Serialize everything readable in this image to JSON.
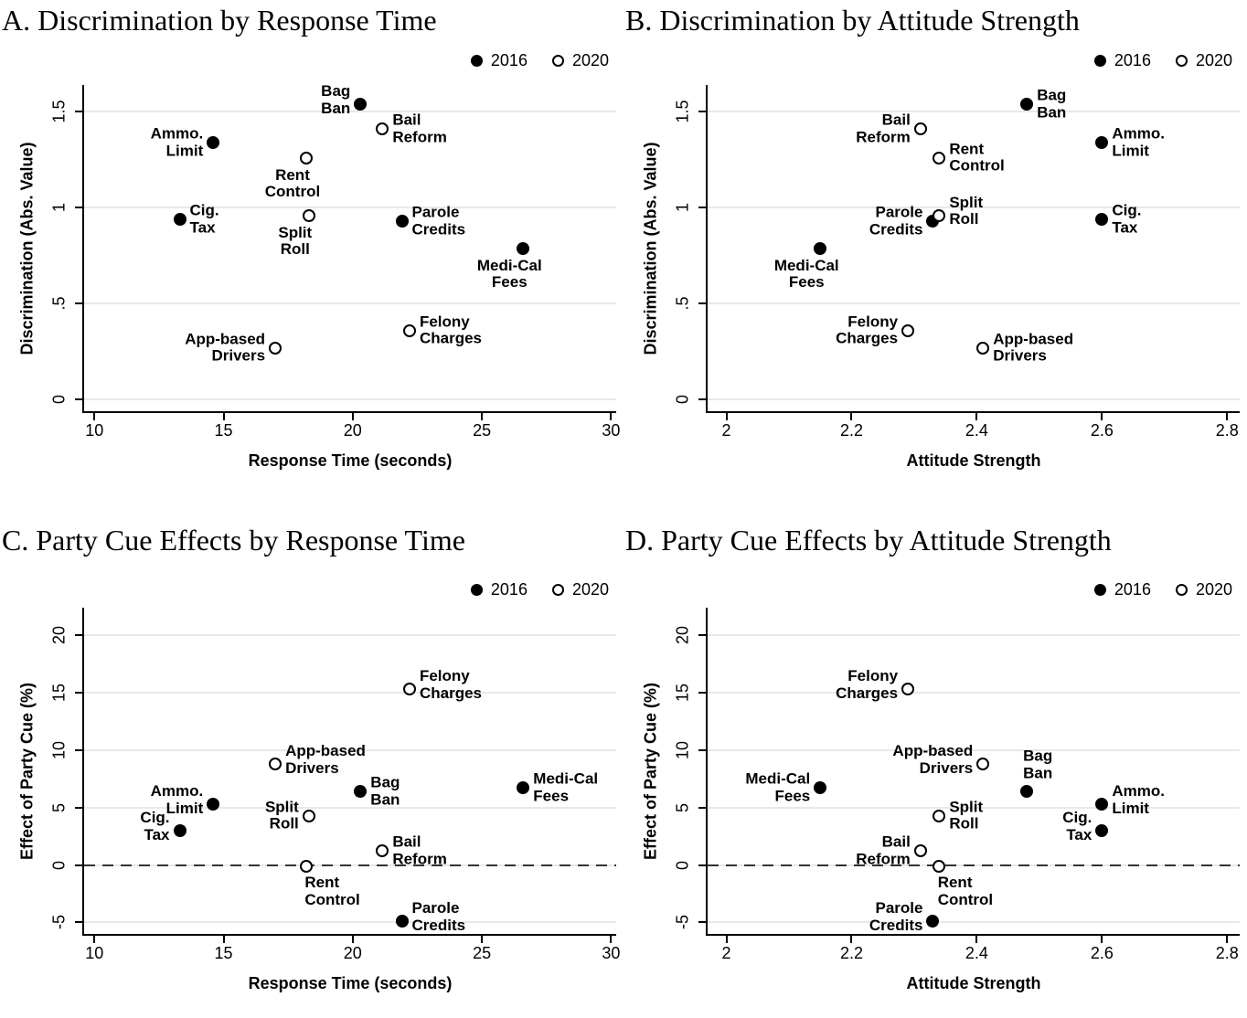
{
  "legend": {
    "series": [
      {
        "label": "2016",
        "marker": "filled"
      },
      {
        "label": "2020",
        "marker": "open"
      }
    ]
  },
  "colors": {
    "point": "#000000",
    "grid": "#e8e8e8",
    "axis": "#000000",
    "dashed_zero_line": "#333333",
    "background": "#ffffff",
    "text": "#000000"
  },
  "chart_data": [
    {
      "id": "A",
      "type": "scatter",
      "title": "A. Discrimination by Response Time",
      "xlabel": "Response Time (seconds)",
      "ylabel": "Discrimination (Abs. Value)",
      "xlim": [
        9.6,
        30.2
      ],
      "ylim": [
        -0.06,
        1.64
      ],
      "xticks": [
        10,
        15,
        20,
        25,
        30
      ],
      "xtick_labels": [
        "10",
        "15",
        "20",
        "25",
        "30"
      ],
      "yticks": [
        0,
        0.5,
        1,
        1.5
      ],
      "ytick_labels": [
        "0",
        ".5",
        "1",
        "1.5"
      ],
      "grid": true,
      "zero_line": false,
      "legend_position": "top-right",
      "series": [
        {
          "name": "2016",
          "marker": "filled",
          "points": [
            {
              "label": "Ammo. Limit",
              "label_lines": [
                "Ammo.",
                "Limit"
              ],
              "x": 14.6,
              "y": 1.34,
              "label_pos": "left"
            },
            {
              "label": "Cig. Tax",
              "label_lines": [
                "Cig.",
                "Tax"
              ],
              "x": 13.3,
              "y": 0.94,
              "label_pos": "right"
            },
            {
              "label": "Bag Ban",
              "label_lines": [
                "Bag",
                "Ban"
              ],
              "x": 20.3,
              "y": 1.54,
              "label_pos": "left-up"
            },
            {
              "label": "Parole Credits",
              "label_lines": [
                "Parole",
                "Credits"
              ],
              "x": 21.9,
              "y": 0.93,
              "label_pos": "right"
            },
            {
              "label": "Medi-Cal Fees",
              "label_lines": [
                "Medi-Cal",
                "Fees"
              ],
              "x": 26.6,
              "y": 0.79,
              "label_pos": "below-left"
            }
          ]
        },
        {
          "name": "2020",
          "marker": "open",
          "points": [
            {
              "label": "Rent Control",
              "label_lines": [
                "Rent",
                "Control"
              ],
              "x": 18.2,
              "y": 1.26,
              "label_pos": "below-left"
            },
            {
              "label": "Split Roll",
              "label_lines": [
                "Split",
                "Roll"
              ],
              "x": 18.3,
              "y": 0.96,
              "label_pos": "below-left"
            },
            {
              "label": "Bail Reform",
              "label_lines": [
                "Bail",
                "Reform"
              ],
              "x": 21.15,
              "y": 1.41,
              "label_pos": "right"
            },
            {
              "label": "App-based Drivers",
              "label_lines": [
                "App-based",
                "Drivers"
              ],
              "x": 17.0,
              "y": 0.27,
              "label_pos": "left"
            },
            {
              "label": "Felony Charges",
              "label_lines": [
                "Felony",
                "Charges"
              ],
              "x": 22.2,
              "y": 0.36,
              "label_pos": "right"
            }
          ]
        }
      ]
    },
    {
      "id": "B",
      "type": "scatter",
      "title": "B. Discrimination by Attitude Strength",
      "xlabel": "Attitude Strength",
      "ylabel": "Discrimination (Abs. Value)",
      "xlim": [
        1.97,
        2.82
      ],
      "ylim": [
        -0.06,
        1.64
      ],
      "xticks": [
        2,
        2.2,
        2.4,
        2.6,
        2.8
      ],
      "xtick_labels": [
        "2",
        "2.2",
        "2.4",
        "2.6",
        "2.8"
      ],
      "yticks": [
        0,
        0.5,
        1,
        1.5
      ],
      "ytick_labels": [
        "0",
        ".5",
        "1",
        "1.5"
      ],
      "grid": true,
      "zero_line": false,
      "legend_position": "top-right",
      "series": [
        {
          "name": "2016",
          "marker": "filled",
          "points": [
            {
              "label": "Bag Ban",
              "label_lines": [
                "Bag",
                "Ban"
              ],
              "x": 2.48,
              "y": 1.54,
              "label_pos": "right"
            },
            {
              "label": "Ammo. Limit",
              "label_lines": [
                "Ammo.",
                "Limit"
              ],
              "x": 2.6,
              "y": 1.34,
              "label_pos": "right"
            },
            {
              "label": "Cig. Tax",
              "label_lines": [
                "Cig.",
                "Tax"
              ],
              "x": 2.6,
              "y": 0.94,
              "label_pos": "right"
            },
            {
              "label": "Parole Credits",
              "label_lines": [
                "Parole",
                "Credits"
              ],
              "x": 2.33,
              "y": 0.93,
              "label_pos": "left"
            },
            {
              "label": "Medi-Cal Fees",
              "label_lines": [
                "Medi-Cal",
                "Fees"
              ],
              "x": 2.15,
              "y": 0.79,
              "label_pos": "below-left"
            }
          ]
        },
        {
          "name": "2020",
          "marker": "open",
          "points": [
            {
              "label": "Bail Reform",
              "label_lines": [
                "Bail",
                "Reform"
              ],
              "x": 2.31,
              "y": 1.41,
              "label_pos": "left"
            },
            {
              "label": "Rent Control",
              "label_lines": [
                "Rent",
                "Control"
              ],
              "x": 2.34,
              "y": 1.26,
              "label_pos": "right"
            },
            {
              "label": "Split Roll",
              "label_lines": [
                "Split",
                "Roll"
              ],
              "x": 2.34,
              "y": 0.96,
              "label_pos": "right-up"
            },
            {
              "label": "Felony Charges",
              "label_lines": [
                "Felony",
                "Charges"
              ],
              "x": 2.29,
              "y": 0.36,
              "label_pos": "left"
            },
            {
              "label": "App-based Drivers",
              "label_lines": [
                "App-based",
                "Drivers"
              ],
              "x": 2.41,
              "y": 0.27,
              "label_pos": "right"
            }
          ]
        }
      ]
    },
    {
      "id": "C",
      "type": "scatter",
      "title": "C. Party Cue Effects by Response Time",
      "xlabel": "Response Time (seconds)",
      "ylabel": "Effect of Party Cue (%)",
      "xlim": [
        9.6,
        30.2
      ],
      "ylim": [
        -6.0,
        22.4
      ],
      "xticks": [
        10,
        15,
        20,
        25,
        30
      ],
      "xtick_labels": [
        "10",
        "15",
        "20",
        "25",
        "30"
      ],
      "yticks": [
        -5,
        0,
        5,
        10,
        15,
        20
      ],
      "ytick_labels": [
        "-5",
        "0",
        "5",
        "10",
        "15",
        "20"
      ],
      "grid": true,
      "zero_line": true,
      "legend_position": "top-right",
      "series": [
        {
          "name": "2016",
          "marker": "filled",
          "points": [
            {
              "label": "Ammo. Limit",
              "label_lines": [
                "Ammo.",
                "Limit"
              ],
              "x": 14.6,
              "y": 5.3,
              "label_pos": "left-up"
            },
            {
              "label": "Cig. Tax",
              "label_lines": [
                "Cig.",
                "Tax"
              ],
              "x": 13.3,
              "y": 3.0,
              "label_pos": "left-up"
            },
            {
              "label": "Bag Ban",
              "label_lines": [
                "Bag",
                "Ban"
              ],
              "x": 20.3,
              "y": 6.4,
              "label_pos": "right"
            },
            {
              "label": "Medi-Cal Fees",
              "label_lines": [
                "Medi-Cal",
                "Fees"
              ],
              "x": 26.6,
              "y": 6.7,
              "label_pos": "right"
            },
            {
              "label": "Parole Credits",
              "label_lines": [
                "Parole",
                "Credits"
              ],
              "x": 21.9,
              "y": -4.9,
              "label_pos": "right-up"
            }
          ]
        },
        {
          "name": "2020",
          "marker": "open",
          "points": [
            {
              "label": "Felony Charges",
              "label_lines": [
                "Felony",
                "Charges"
              ],
              "x": 22.2,
              "y": 15.3,
              "label_pos": "right-up"
            },
            {
              "label": "App-based Drivers",
              "label_lines": [
                "App-based",
                "Drivers"
              ],
              "x": 17.0,
              "y": 8.8,
              "label_pos": "right-up"
            },
            {
              "label": "Split Roll",
              "label_lines": [
                "Split",
                "Roll"
              ],
              "x": 18.3,
              "y": 4.3,
              "label_pos": "left"
            },
            {
              "label": "Bail Reform",
              "label_lines": [
                "Bail",
                "Reform"
              ],
              "x": 21.15,
              "y": 1.2,
              "label_pos": "right"
            },
            {
              "label": "Rent Control",
              "label_lines": [
                "Rent",
                "Control"
              ],
              "x": 18.2,
              "y": -0.1,
              "label_pos": "below-right"
            }
          ]
        }
      ]
    },
    {
      "id": "D",
      "type": "scatter",
      "title": "D. Party Cue Effects by Attitude Strength",
      "xlabel": "Attitude Strength",
      "ylabel": "Effect of Party Cue (%)",
      "xlim": [
        1.97,
        2.82
      ],
      "ylim": [
        -6.0,
        22.4
      ],
      "xticks": [
        2,
        2.2,
        2.4,
        2.6,
        2.8
      ],
      "xtick_labels": [
        "2",
        "2.2",
        "2.4",
        "2.6",
        "2.8"
      ],
      "yticks": [
        -5,
        0,
        5,
        10,
        15,
        20
      ],
      "ytick_labels": [
        "-5",
        "0",
        "5",
        "10",
        "15",
        "20"
      ],
      "grid": true,
      "zero_line": true,
      "legend_position": "top-right",
      "series": [
        {
          "name": "2016",
          "marker": "filled",
          "points": [
            {
              "label": "Medi-Cal Fees",
              "label_lines": [
                "Medi-Cal",
                "Fees"
              ],
              "x": 2.15,
              "y": 6.7,
              "label_pos": "left"
            },
            {
              "label": "Bag Ban",
              "label_lines": [
                "Bag",
                "Ban"
              ],
              "x": 2.48,
              "y": 6.4,
              "label_pos": "above-right"
            },
            {
              "label": "Ammo. Limit",
              "label_lines": [
                "Ammo.",
                "Limit"
              ],
              "x": 2.6,
              "y": 5.3,
              "label_pos": "right-up"
            },
            {
              "label": "Cig. Tax",
              "label_lines": [
                "Cig.",
                "Tax"
              ],
              "x": 2.6,
              "y": 3.0,
              "label_pos": "left-up"
            },
            {
              "label": "Parole Credits",
              "label_lines": [
                "Parole",
                "Credits"
              ],
              "x": 2.33,
              "y": -4.9,
              "label_pos": "left-up"
            }
          ]
        },
        {
          "name": "2020",
          "marker": "open",
          "points": [
            {
              "label": "Felony Charges",
              "label_lines": [
                "Felony",
                "Charges"
              ],
              "x": 2.29,
              "y": 15.3,
              "label_pos": "left-up"
            },
            {
              "label": "App-based Drivers",
              "label_lines": [
                "App-based",
                "Drivers"
              ],
              "x": 2.41,
              "y": 8.8,
              "label_pos": "left-up"
            },
            {
              "label": "Split Roll",
              "label_lines": [
                "Split",
                "Roll"
              ],
              "x": 2.34,
              "y": 4.3,
              "label_pos": "right"
            },
            {
              "label": "Bail Reform",
              "label_lines": [
                "Bail",
                "Reform"
              ],
              "x": 2.31,
              "y": 1.2,
              "label_pos": "left"
            },
            {
              "label": "Rent Control",
              "label_lines": [
                "Rent",
                "Control"
              ],
              "x": 2.34,
              "y": -0.1,
              "label_pos": "below-right"
            }
          ]
        }
      ]
    }
  ]
}
